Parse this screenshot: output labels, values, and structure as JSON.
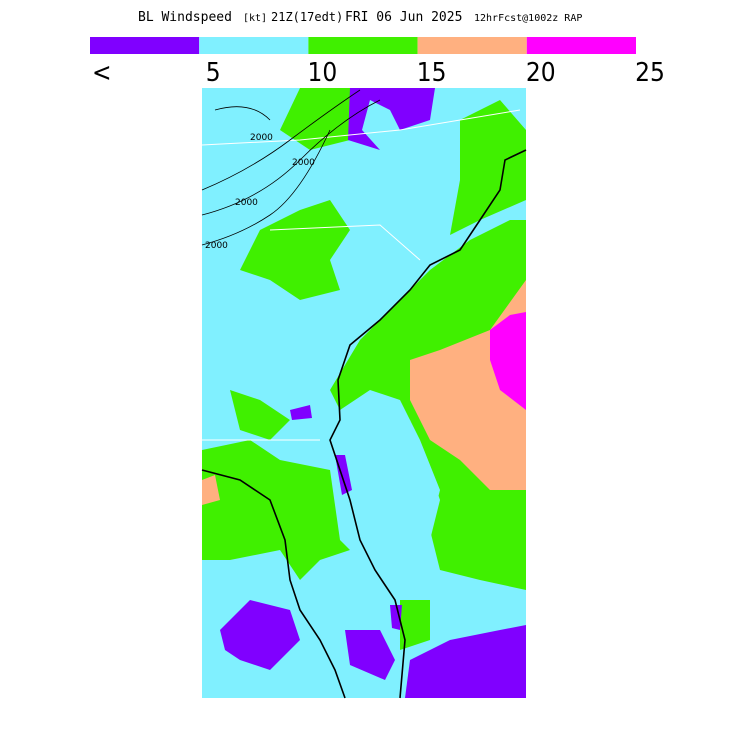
{
  "header": {
    "product": "BL Windspeed",
    "units": "[kt]",
    "valid": "21Z(17edt)",
    "date": "FRI 06 Jun 2025",
    "model": "12hrFcst@1002z RAP"
  },
  "legend": {
    "labels": [
      "<",
      "5",
      "10",
      "15",
      "20",
      "25"
    ],
    "colors": [
      "#8000ff",
      "#80f0ff",
      "#40f000",
      "#ffb080",
      "#ff00ff"
    ]
  },
  "map": {
    "contour_labels": [
      "2000",
      "2000",
      "2000",
      "2000"
    ]
  }
}
